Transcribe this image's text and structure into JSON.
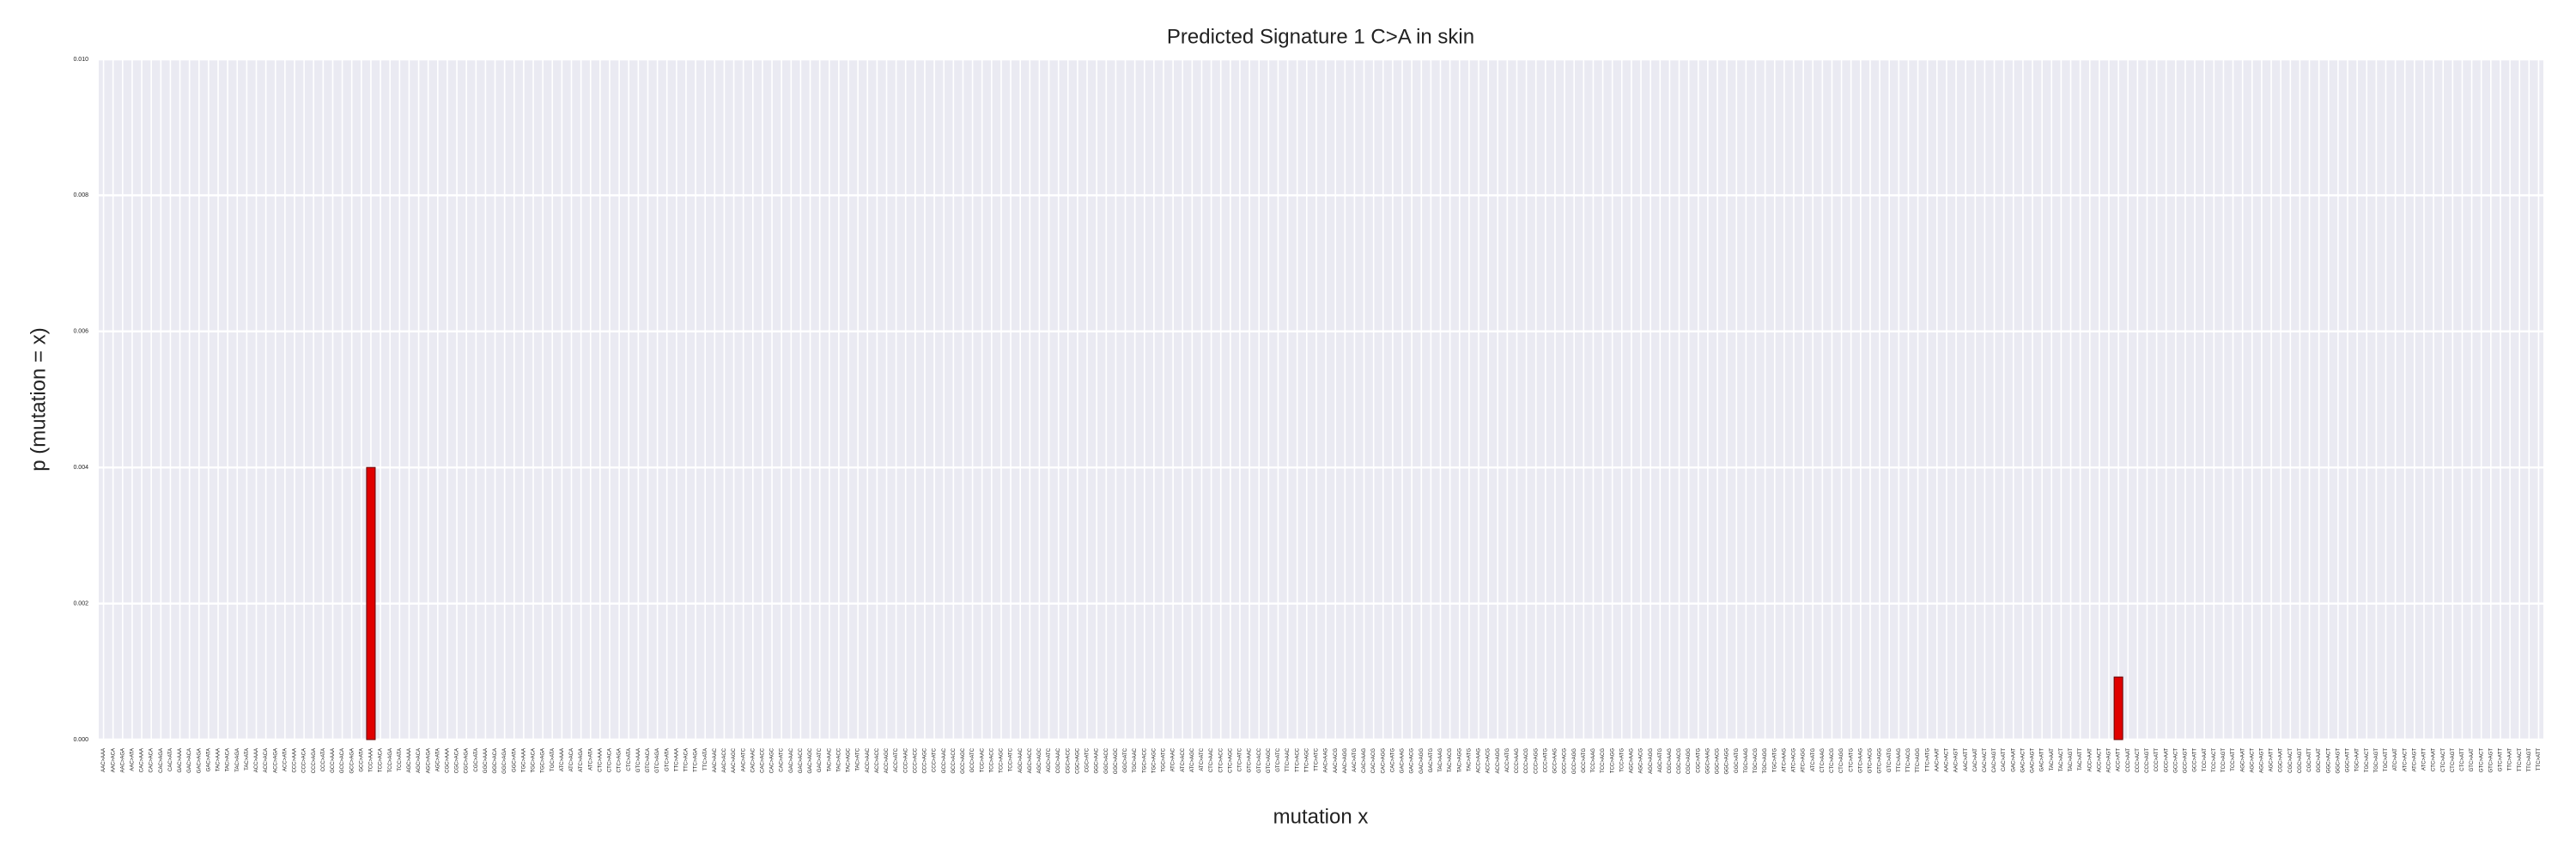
{
  "chart_data": {
    "type": "bar",
    "title": "Predicted Signature 1 C>A in skin",
    "x_label": "mutation x",
    "y_label": "p (mutation = x)",
    "color": "#e00000",
    "grid": true,
    "ylim": [
      0,
      0.01
    ],
    "yticks": [
      {
        "value": 0,
        "label": "0.000"
      },
      {
        "value": 0.002,
        "label": "0.002"
      },
      {
        "value": 0.004,
        "label": "0.004"
      },
      {
        "value": 0.006,
        "label": "0.006"
      },
      {
        "value": 0.008,
        "label": "0.008"
      },
      {
        "value": 0.01,
        "label": "0.010"
      }
    ],
    "categories": [
      "AAC>AAA",
      "AAC>ACA",
      "AAC>AGA",
      "AAC>ATA",
      "CAC>AAA",
      "CAC>ACA",
      "CAC>AGA",
      "CAC>ATA",
      "GAC>AAA",
      "GAC>ACA",
      "GAC>AGA",
      "GAC>ATA",
      "TAC>AAA",
      "TAC>ACA",
      "TAC>AGA",
      "TAC>ATA",
      "ACC>AAA",
      "ACC>ACA",
      "ACC>AGA",
      "ACC>ATA",
      "CCC>AAA",
      "CCC>ACA",
      "CCC>AGA",
      "CCC>ATA",
      "GCC>AAA",
      "GCC>ACA",
      "GCC>AGA",
      "GCC>ATA",
      "TCC>AAA",
      "TCC>ACA",
      "TCC>AGA",
      "TCC>ATA",
      "AGC>AAA",
      "AGC>ACA",
      "AGC>AGA",
      "AGC>ATA",
      "CGC>AAA",
      "CGC>ACA",
      "CGC>AGA",
      "CGC>ATA",
      "GGC>AAA",
      "GGC>ACA",
      "GGC>AGA",
      "GGC>ATA",
      "TGC>AAA",
      "TGC>ACA",
      "TGC>AGA",
      "TGC>ATA",
      "ATC>AAA",
      "ATC>ACA",
      "ATC>AGA",
      "ATC>ATA",
      "CTC>AAA",
      "CTC>ACA",
      "CTC>AGA",
      "CTC>ATA",
      "GTC>AAA",
      "GTC>ACA",
      "GTC>AGA",
      "GTC>ATA",
      "TTC>AAA",
      "TTC>ACA",
      "TTC>AGA",
      "TTC>ATA",
      "AAC>AAC",
      "AAC>ACC",
      "AAC>AGC",
      "AAC>ATC",
      "CAC>AAC",
      "CAC>ACC",
      "CAC>AGC",
      "CAC>ATC",
      "GAC>AAC",
      "GAC>ACC",
      "GAC>AGC",
      "GAC>ATC",
      "TAC>AAC",
      "TAC>ACC",
      "TAC>AGC",
      "TAC>ATC",
      "ACC>AAC",
      "ACC>ACC",
      "ACC>AGC",
      "ACC>ATC",
      "CCC>AAC",
      "CCC>ACC",
      "CCC>AGC",
      "CCC>ATC",
      "GCC>AAC",
      "GCC>ACC",
      "GCC>AGC",
      "GCC>ATC",
      "TCC>AAC",
      "TCC>ACC",
      "TCC>AGC",
      "TCC>ATC",
      "AGC>AAC",
      "AGC>ACC",
      "AGC>AGC",
      "AGC>ATC",
      "CGC>AAC",
      "CGC>ACC",
      "CGC>AGC",
      "CGC>ATC",
      "GGC>AAC",
      "GGC>ACC",
      "GGC>AGC",
      "GGC>ATC",
      "TGC>AAC",
      "TGC>ACC",
      "TGC>AGC",
      "TGC>ATC",
      "ATC>AAC",
      "ATC>ACC",
      "ATC>AGC",
      "ATC>ATC",
      "CTC>AAC",
      "CTC>ACC",
      "CTC>AGC",
      "CTC>ATC",
      "GTC>AAC",
      "GTC>ACC",
      "GTC>AGC",
      "GTC>ATC",
      "TTC>AAC",
      "TTC>ACC",
      "TTC>AGC",
      "TTC>ATC",
      "AAC>AAG",
      "AAC>ACG",
      "AAC>AGG",
      "AAC>ATG",
      "CAC>AAG",
      "CAC>ACG",
      "CAC>AGG",
      "CAC>ATG",
      "GAC>AAG",
      "GAC>ACG",
      "GAC>AGG",
      "GAC>ATG",
      "TAC>AAG",
      "TAC>ACG",
      "TAC>AGG",
      "TAC>ATG",
      "ACC>AAG",
      "ACC>ACG",
      "ACC>AGG",
      "ACC>ATG",
      "CCC>AAG",
      "CCC>ACG",
      "CCC>AGG",
      "CCC>ATG",
      "GCC>AAG",
      "GCC>ACG",
      "GCC>AGG",
      "GCC>ATG",
      "TCC>AAG",
      "TCC>ACG",
      "TCC>AGG",
      "TCC>ATG",
      "AGC>AAG",
      "AGC>ACG",
      "AGC>AGG",
      "AGC>ATG",
      "CGC>AAG",
      "CGC>ACG",
      "CGC>AGG",
      "CGC>ATG",
      "GGC>AAG",
      "GGC>ACG",
      "GGC>AGG",
      "GGC>ATG",
      "TGC>AAG",
      "TGC>ACG",
      "TGC>AGG",
      "TGC>ATG",
      "ATC>AAG",
      "ATC>ACG",
      "ATC>AGG",
      "ATC>ATG",
      "CTC>AAG",
      "CTC>ACG",
      "CTC>AGG",
      "CTC>ATG",
      "GTC>AAG",
      "GTC>ACG",
      "GTC>AGG",
      "GTC>ATG",
      "TTC>AAG",
      "TTC>ACG",
      "TTC>AGG",
      "TTC>ATG",
      "AAC>AAT",
      "AAC>ACT",
      "AAC>AGT",
      "AAC>ATT",
      "CAC>AAT",
      "CAC>ACT",
      "CAC>AGT",
      "CAC>ATT",
      "GAC>AAT",
      "GAC>ACT",
      "GAC>AGT",
      "GAC>ATT",
      "TAC>AAT",
      "TAC>ACT",
      "TAC>AGT",
      "TAC>ATT",
      "ACC>AAT",
      "ACC>ACT",
      "ACC>AGT",
      "ACC>ATT",
      "CCC>AAT",
      "CCC>ACT",
      "CCC>AGT",
      "CCC>ATT",
      "GCC>AAT",
      "GCC>ACT",
      "GCC>AGT",
      "GCC>ATT",
      "TCC>AAT",
      "TCC>ACT",
      "TCC>AGT",
      "TCC>ATT",
      "AGC>AAT",
      "AGC>ACT",
      "AGC>AGT",
      "AGC>ATT",
      "CGC>AAT",
      "CGC>ACT",
      "CGC>AGT",
      "CGC>ATT",
      "GGC>AAT",
      "GGC>ACT",
      "GGC>AGT",
      "GGC>ATT",
      "TGC>AAT",
      "TGC>ACT",
      "TGC>AGT",
      "TGC>ATT",
      "ATC>AAT",
      "ATC>ACT",
      "ATC>AGT",
      "ATC>ATT",
      "CTC>AAT",
      "CTC>ACT",
      "CTC>AGT",
      "CTC>ATT",
      "GTC>AAT",
      "GTC>ACT",
      "GTC>AGT",
      "GTC>ATT",
      "TTC>AAT",
      "TTC>ACT",
      "TTC>AGT",
      "TTC>ATT"
    ],
    "values": [
      0,
      0,
      0,
      0,
      0,
      0,
      0,
      0,
      0,
      0,
      0,
      0,
      0,
      0,
      0,
      0,
      0,
      0,
      0,
      0,
      0,
      0,
      0,
      0,
      0,
      0,
      0,
      0,
      0.004,
      0,
      0,
      0,
      0,
      0,
      0,
      0,
      0,
      0,
      0,
      0,
      0,
      0,
      0,
      0,
      0,
      0,
      0,
      0,
      0,
      0,
      0,
      0,
      0,
      0,
      0,
      0,
      0,
      0,
      0,
      0,
      0,
      0,
      0,
      0,
      0,
      0,
      0,
      0,
      0,
      0,
      0,
      0,
      0,
      0,
      0,
      0,
      0,
      0,
      0,
      0,
      0,
      0,
      0,
      0,
      0,
      0,
      0,
      0,
      0,
      0,
      0,
      0,
      0,
      0,
      0,
      0,
      0,
      0,
      0,
      0,
      0,
      0,
      0,
      0,
      0,
      0,
      0,
      0,
      0,
      0,
      0,
      0,
      0,
      0,
      0,
      0,
      0,
      0,
      0,
      0,
      0,
      0,
      0,
      0,
      0,
      0,
      0,
      0,
      0,
      0,
      0,
      0,
      0,
      0,
      0,
      0,
      0,
      0,
      0,
      0,
      0,
      0,
      0,
      0,
      0,
      0,
      0,
      0,
      0,
      0,
      0,
      0,
      0,
      0,
      0,
      0,
      0,
      0,
      0,
      0,
      0,
      0,
      0,
      0,
      0,
      0,
      0,
      0,
      0,
      0,
      0,
      0,
      0,
      0,
      0,
      0,
      0,
      0,
      0,
      0,
      0,
      0,
      0,
      0,
      0,
      0,
      0,
      0,
      0,
      0,
      0,
      0,
      0,
      0,
      0,
      0,
      0,
      0,
      0,
      0,
      0,
      0,
      0,
      0,
      0,
      0,
      0,
      0,
      0,
      0,
      0,
      0.00092,
      0,
      0,
      0,
      0,
      0,
      0,
      0,
      0,
      0,
      0,
      0,
      0,
      0,
      0,
      0,
      0,
      0,
      0,
      0,
      0,
      0,
      0,
      0,
      0,
      0,
      0,
      0,
      0,
      0,
      0,
      0,
      0,
      0,
      0,
      0,
      0,
      0,
      0,
      0,
      0,
      0,
      0,
      0,
      0
    ]
  }
}
